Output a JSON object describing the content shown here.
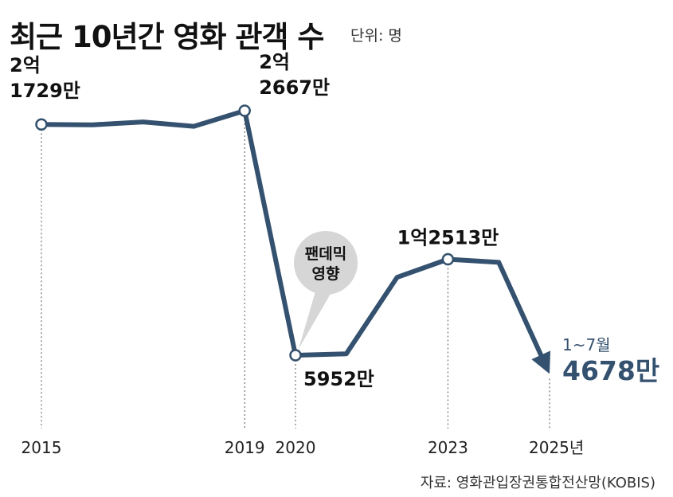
{
  "header": {
    "title": "최근 10년간 영화 관객 수",
    "unit": "단위: 명"
  },
  "source": "자료: 영화관입장권통합전산망(KOBIS)",
  "colors": {
    "line": "#34516f",
    "callout": "#d6d6d6",
    "text": "#111111",
    "highlight": "#34516f"
  },
  "chart_data": {
    "type": "line",
    "x": [
      2015,
      2016,
      2017,
      2018,
      2019,
      2020,
      2021,
      2022,
      2023,
      2024,
      2025
    ],
    "series": [
      {
        "values": [
          217290000,
          217000000,
          219000000,
          216000000,
          226670000,
          59520000,
          60500000,
          112800000,
          125130000,
          123000000,
          46780000
        ]
      }
    ],
    "x_tick_labels": [
      {
        "x": 2015,
        "text": "2015"
      },
      {
        "x": 2019,
        "text": "2019"
      },
      {
        "x": 2020,
        "text": "2020"
      },
      {
        "x": 2023,
        "text": "2023"
      },
      {
        "x": 2025,
        "text": "2025년"
      }
    ],
    "data_labels": [
      {
        "x": 2015,
        "lines": [
          "2억",
          "1729만"
        ]
      },
      {
        "x": 2019,
        "lines": [
          "2억",
          "2667만"
        ]
      },
      {
        "x": 2020,
        "lines": [
          "5952만"
        ]
      },
      {
        "x": 2023,
        "lines": [
          "1억2513만"
        ]
      }
    ],
    "last_point_label": {
      "note": "1~7월",
      "value": "4678만"
    },
    "annotation": {
      "x": 2020,
      "lines": [
        "팬데믹",
        "영향"
      ]
    },
    "marked_points": [
      2015,
      2019,
      2020,
      2023
    ],
    "arrow_at_end": true,
    "grid": false
  }
}
